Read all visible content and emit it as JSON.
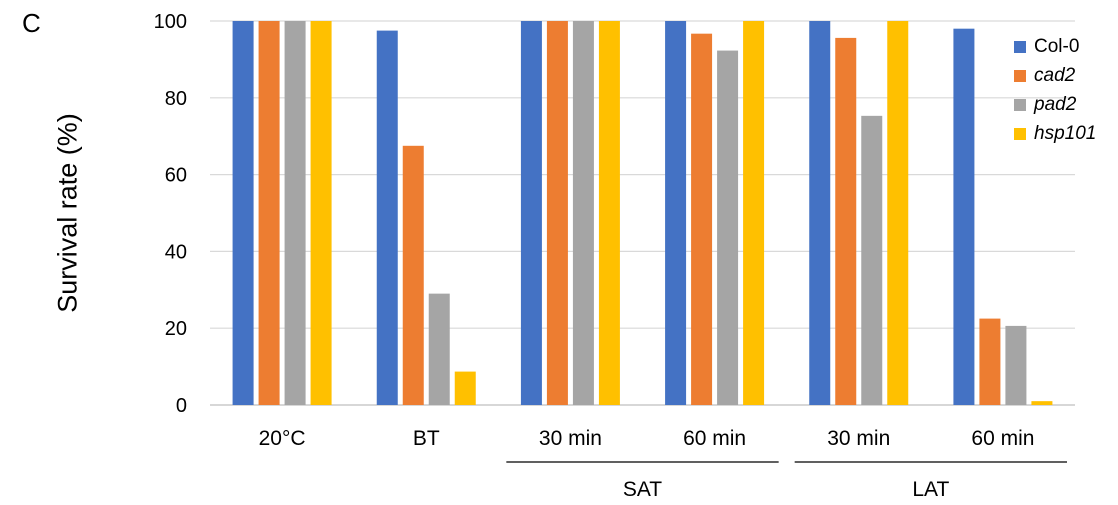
{
  "panel_letter": "C",
  "chart_data": {
    "type": "bar",
    "title": "",
    "xlabel": "",
    "ylabel": "Survival rate (%)",
    "ylim": [
      0,
      100
    ],
    "yticks": [
      0,
      20,
      40,
      60,
      80,
      100
    ],
    "grid": true,
    "legend_position": "right",
    "categories": [
      "20°C",
      "BT",
      "30 min",
      "60 min",
      "30 min",
      "60 min"
    ],
    "category_groups": [
      {
        "label": "SAT",
        "categories": [
          2,
          3
        ]
      },
      {
        "label": "LAT",
        "categories": [
          4,
          5
        ]
      }
    ],
    "series": [
      {
        "name": "Col-0",
        "italic": false,
        "color": "#4472C4",
        "values": [
          100,
          97.5,
          100,
          100,
          100,
          98
        ]
      },
      {
        "name": "cad2",
        "italic": true,
        "color": "#ED7D31",
        "values": [
          100,
          67.5,
          100,
          96.7,
          95.6,
          22.5
        ]
      },
      {
        "name": "pad2",
        "italic": true,
        "color": "#A5A5A5",
        "values": [
          100,
          29,
          100,
          92.3,
          75.3,
          20.6
        ]
      },
      {
        "name": "hsp101",
        "italic": true,
        "color": "#FFC000",
        "values": [
          100,
          8.7,
          100,
          100,
          100,
          1
        ]
      }
    ]
  }
}
